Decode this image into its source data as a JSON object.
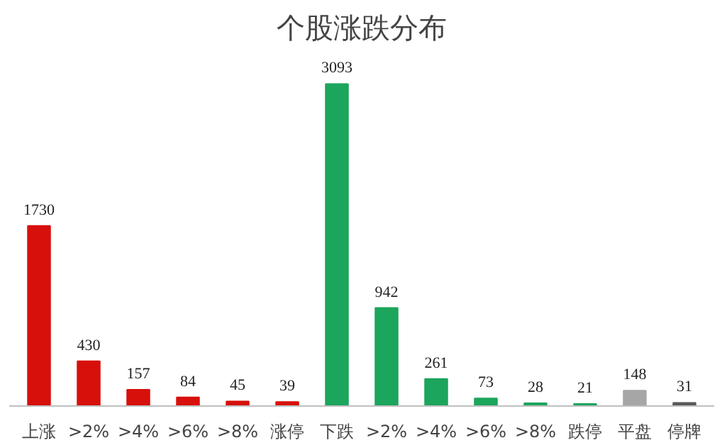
{
  "chart_data": {
    "type": "bar",
    "title": "个股涨跌分布",
    "categories": [
      "上涨",
      ">2%",
      ">4%",
      ">6%",
      ">8%",
      "涨停",
      "下跌",
      ">2%",
      ">4%",
      ">6%",
      ">8%",
      "跌停",
      "平盘",
      "停牌"
    ],
    "values": [
      1730,
      430,
      157,
      84,
      45,
      39,
      3093,
      942,
      261,
      73,
      28,
      21,
      148,
      31
    ],
    "colors": [
      "#d7100c",
      "#d7100c",
      "#d7100c",
      "#d7100c",
      "#d7100c",
      "#d7100c",
      "#1ca55c",
      "#1ca55c",
      "#1ca55c",
      "#1ca55c",
      "#1ca55c",
      "#1ca55c",
      "#a6a6a6",
      "#595959"
    ],
    "data_labels": true,
    "grid": false
  }
}
